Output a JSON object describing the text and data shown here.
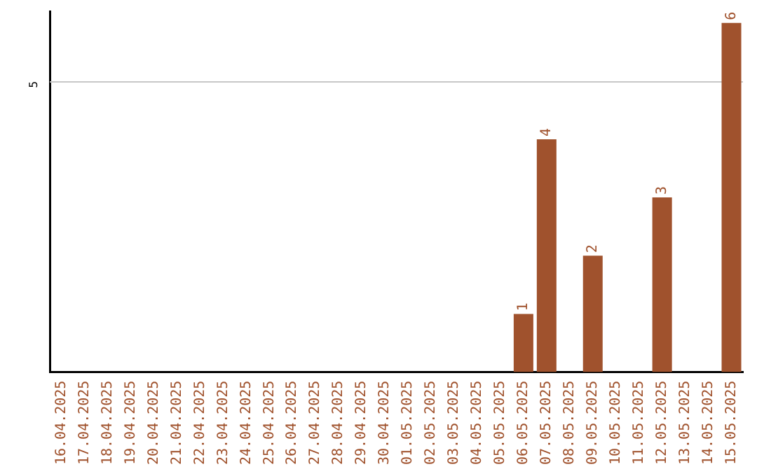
{
  "chart_data": {
    "type": "bar",
    "categories": [
      "16.04.2025",
      "17.04.2025",
      "18.04.2025",
      "19.04.2025",
      "20.04.2025",
      "21.04.2025",
      "22.04.2025",
      "23.04.2025",
      "24.04.2025",
      "25.04.2025",
      "26.04.2025",
      "27.04.2025",
      "28.04.2025",
      "29.04.2025",
      "30.04.2025",
      "01.05.2025",
      "02.05.2025",
      "03.05.2025",
      "04.05.2025",
      "05.05.2025",
      "06.05.2025",
      "07.05.2025",
      "08.05.2025",
      "09.05.2025",
      "10.05.2025",
      "11.05.2025",
      "12.05.2025",
      "13.05.2025",
      "14.05.2025",
      "15.05.2025"
    ],
    "values": [
      null,
      null,
      null,
      null,
      null,
      null,
      null,
      null,
      null,
      null,
      null,
      null,
      null,
      null,
      null,
      null,
      null,
      null,
      null,
      null,
      1,
      4,
      null,
      2,
      null,
      null,
      3,
      null,
      null,
      6
    ],
    "value_labels": [
      null,
      null,
      null,
      null,
      null,
      null,
      null,
      null,
      null,
      null,
      null,
      null,
      null,
      null,
      null,
      null,
      null,
      null,
      null,
      null,
      "1",
      "4",
      null,
      "2",
      null,
      null,
      "3",
      null,
      null,
      "6"
    ],
    "color": "#a0522d",
    "ylim": [
      0,
      6.2
    ],
    "yticks": [
      {
        "value": 0,
        "label": null
      },
      5
    ],
    "grid": "y",
    "legend": false
  }
}
